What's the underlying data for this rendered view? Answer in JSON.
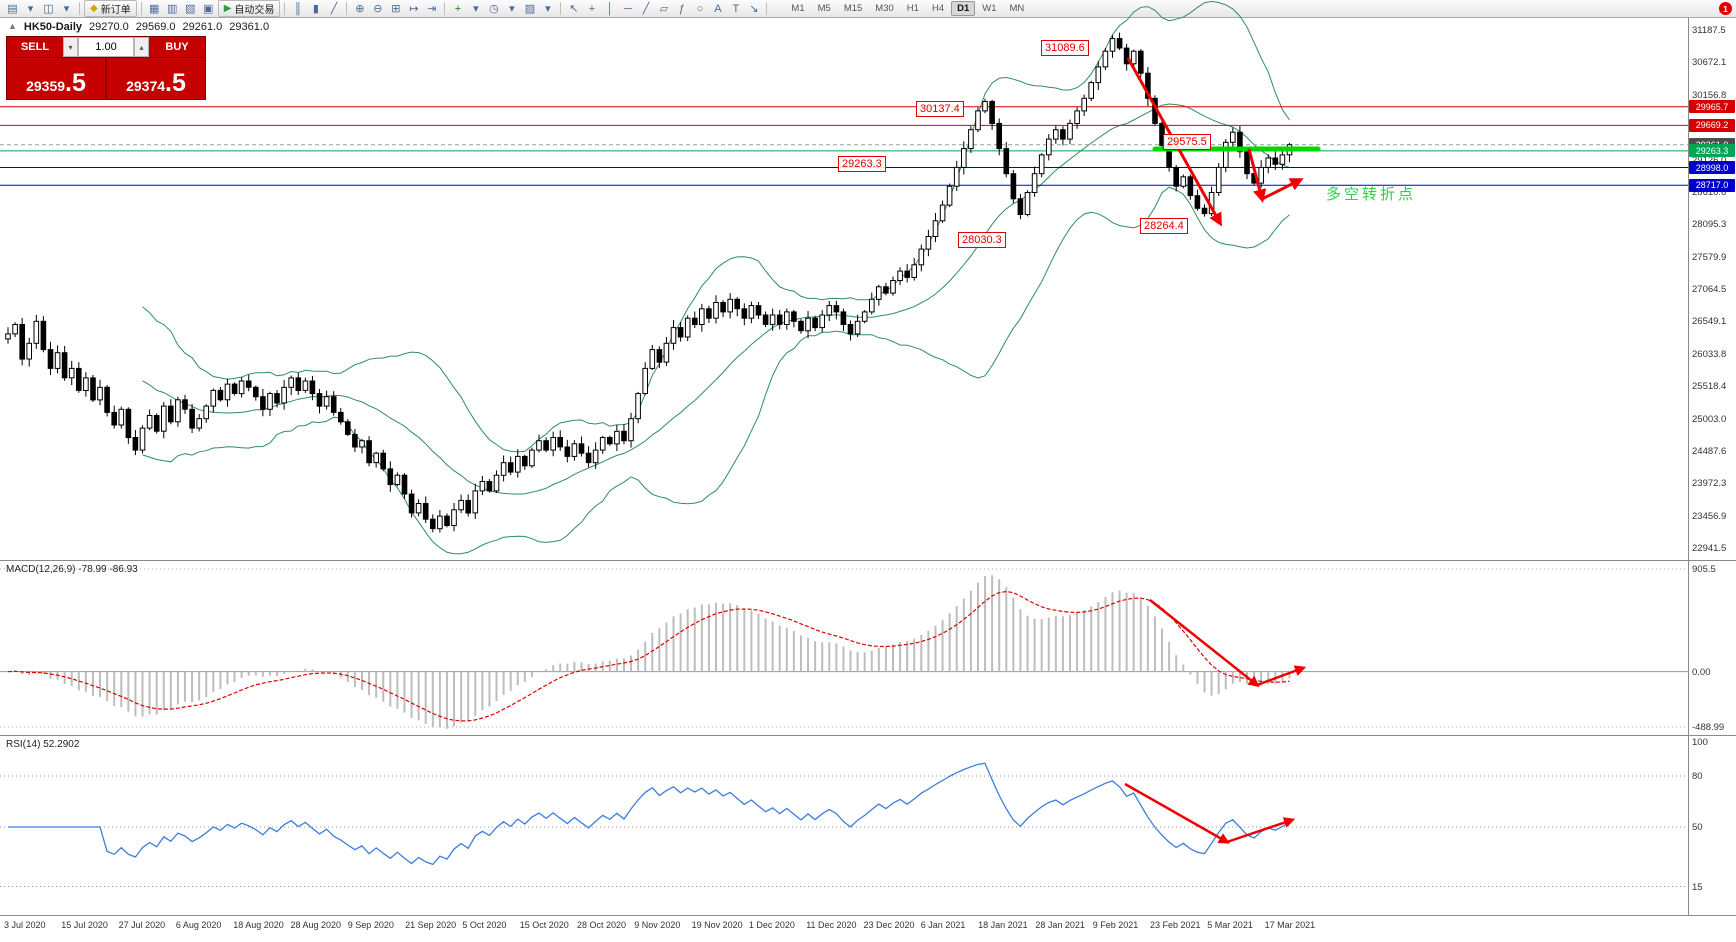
{
  "toolbar": {
    "items": [
      {
        "t": "icon",
        "n": "new-chart-icon",
        "g": "▤"
      },
      {
        "t": "icon",
        "n": "new-chart-dropdown-icon",
        "g": "▾"
      },
      {
        "t": "icon",
        "n": "profiles-icon",
        "g": "◫"
      },
      {
        "t": "icon",
        "n": "profiles-dropdown-icon",
        "g": "▾"
      },
      {
        "t": "sep"
      },
      {
        "t": "button",
        "n": "new-order-button",
        "g": "◆",
        "gc": "#d9a400",
        "label": "新订单"
      },
      {
        "t": "sep"
      },
      {
        "t": "icon",
        "n": "market-watch-icon",
        "g": "▦"
      },
      {
        "t": "icon",
        "n": "data-window-icon",
        "g": "▥"
      },
      {
        "t": "icon",
        "n": "navigator-icon",
        "g": "▧"
      },
      {
        "t": "icon",
        "n": "terminal-icon",
        "g": "▣"
      },
      {
        "t": "button",
        "n": "autotrading-button",
        "g": "▶",
        "gc": "#2e9e3f",
        "label": "自动交易"
      },
      {
        "t": "sep"
      },
      {
        "t": "icon",
        "n": "bar-chart-icon",
        "g": "║"
      },
      {
        "t": "icon",
        "n": "candlestick-chart-icon",
        "g": "▮"
      },
      {
        "t": "icon",
        "n": "line-chart-icon",
        "g": "╱"
      },
      {
        "t": "sep"
      },
      {
        "t": "icon",
        "n": "zoom-in-icon",
        "g": "⊕"
      },
      {
        "t": "icon",
        "n": "zoom-out-icon",
        "g": "⊖"
      },
      {
        "t": "icon",
        "n": "tile-windows-icon",
        "g": "⊞"
      },
      {
        "t": "icon",
        "n": "auto-scroll-icon",
        "g": "↦"
      },
      {
        "t": "icon",
        "n": "chart-shift-icon",
        "g": "⇥"
      },
      {
        "t": "sep"
      },
      {
        "t": "icon",
        "n": "indicators-icon",
        "g": "+",
        "gc": "#1a7f1a"
      },
      {
        "t": "icon",
        "n": "indicators-dropdown-icon",
        "g": "▾"
      },
      {
        "t": "icon",
        "n": "periods-icon",
        "g": "◷"
      },
      {
        "t": "icon",
        "n": "periods-dropdown-icon",
        "g": "▾"
      },
      {
        "t": "icon",
        "n": "templates-icon",
        "g": "▨"
      },
      {
        "t": "icon",
        "n": "templates-dropdown-icon",
        "g": "▾"
      },
      {
        "t": "sep"
      },
      {
        "t": "icon",
        "n": "cursor-icon",
        "g": "↖"
      },
      {
        "t": "icon",
        "n": "crosshair-icon",
        "g": "+"
      },
      {
        "t": "icon",
        "n": "vertical-line-icon",
        "g": "│"
      },
      {
        "t": "icon",
        "n": "horizontal-line-icon",
        "g": "─"
      },
      {
        "t": "icon",
        "n": "trendline-icon",
        "g": "╱"
      },
      {
        "t": "icon",
        "n": "channel-icon",
        "g": "▱"
      },
      {
        "t": "icon",
        "n": "fibonacci-icon",
        "g": "ƒ"
      },
      {
        "t": "icon",
        "n": "shapes-icon",
        "g": "○"
      },
      {
        "t": "icon",
        "n": "text-icon",
        "g": "A"
      },
      {
        "t": "icon",
        "n": "label-icon",
        "g": "T"
      },
      {
        "t": "icon",
        "n": "arrows-icon",
        "g": "↘"
      },
      {
        "t": "sep"
      }
    ],
    "timeframes": [
      "M1",
      "M5",
      "M15",
      "M30",
      "H1",
      "H4",
      "D1",
      "W1",
      "MN"
    ],
    "active_timeframe": "D1",
    "notification_count": "1"
  },
  "symbol_header": {
    "marker": "▲",
    "symbol": "HK50-Daily",
    "open": "29270.0",
    "high": "29569.0",
    "low": "29261.0",
    "close": "29361.0"
  },
  "trade_panel": {
    "sell_label": "SELL",
    "buy_label": "BUY",
    "volume": "1.00",
    "caret_down": "▾",
    "caret_up": "▴",
    "bid_int": "29359",
    "bid_frac": ".5",
    "ask_int": "29374",
    "ask_frac": ".5"
  },
  "chart_data": {
    "type": "candlestick",
    "symbol": "HK50",
    "period": "Daily",
    "last_price": 29361.0,
    "price_min": 22941.5,
    "price_max": 31187.5,
    "y_axis": [
      "31187.5",
      "30672.1",
      "30156.8",
      "29641.4",
      "29126.0",
      "28610.6",
      "28095.3",
      "27579.9",
      "27064.5",
      "26549.1",
      "26033.8",
      "25518.4",
      "25003.0",
      "24487.6",
      "23972.3",
      "23456.9",
      "22941.5"
    ],
    "x_axis_dates": [
      "3 Jul 2020",
      "15 Jul 2020",
      "27 Jul 2020",
      "6 Aug 2020",
      "18 Aug 2020",
      "28 Aug 2020",
      "9 Sep 2020",
      "21 Sep 2020",
      "5 Oct 2020",
      "15 Oct 2020",
      "28 Oct 2020",
      "9 Nov 2020",
      "19 Nov 2020",
      "1 Dec 2020",
      "11 Dec 2020",
      "23 Dec 2020",
      "6 Jan 2021",
      "18 Jan 2021",
      "28 Jan 2021",
      "9 Feb 2021",
      "23 Feb 2021",
      "5 Mar 2021",
      "17 Mar 2021"
    ],
    "closes": [
      26350,
      26500,
      25950,
      26200,
      26550,
      26100,
      25800,
      26050,
      25650,
      25800,
      25450,
      25650,
      25300,
      25500,
      25100,
      24900,
      25150,
      24700,
      24500,
      24850,
      25050,
      24800,
      25200,
      24950,
      25300,
      25150,
      24850,
      25000,
      25200,
      25450,
      25300,
      25550,
      25400,
      25600,
      25500,
      25350,
      25150,
      25400,
      25250,
      25500,
      25650,
      25450,
      25600,
      25400,
      25200,
      25350,
      25100,
      24950,
      24750,
      24550,
      24650,
      24300,
      24450,
      24200,
      23950,
      24100,
      23800,
      23500,
      23650,
      23400,
      23250,
      23450,
      23300,
      23550,
      23700,
      23500,
      23850,
      24000,
      23850,
      24100,
      24300,
      24150,
      24400,
      24250,
      24500,
      24650,
      24500,
      24700,
      24550,
      24400,
      24600,
      24450,
      24300,
      24500,
      24700,
      24600,
      24800,
      24650,
      25000,
      25400,
      25800,
      26100,
      25900,
      26200,
      26450,
      26300,
      26600,
      26500,
      26750,
      26600,
      26850,
      26700,
      26900,
      26750,
      26600,
      26800,
      26650,
      26500,
      26650,
      26500,
      26700,
      26550,
      26400,
      26600,
      26450,
      26650,
      26800,
      26700,
      26500,
      26350,
      26550,
      26700,
      26900,
      27100,
      27000,
      27200,
      27350,
      27250,
      27450,
      27700,
      27900,
      28150,
      28400,
      28700,
      29000,
      29300,
      29600,
      29900,
      30050,
      29700,
      29300,
      28900,
      28500,
      28250,
      28600,
      28900,
      29200,
      29450,
      29600,
      29450,
      29700,
      29900,
      30100,
      30350,
      30600,
      30850,
      31050,
      30900,
      30650,
      30850,
      30500,
      30100,
      29700,
      29350,
      29000,
      28700,
      28850,
      28550,
      28350,
      28264,
      28600,
      29000,
      29400,
      29560,
      29250,
      28900,
      28750,
      29000,
      29150,
      29050,
      29200,
      29361
    ],
    "bollinger": {
      "period": 20,
      "deviation": 2,
      "color": "#2f8f5b"
    },
    "hlines": [
      {
        "value": 29965.7,
        "color": "#dd0000"
      },
      {
        "value": 29669.2,
        "color": "#dd0000"
      },
      {
        "value": 29263.3,
        "color": "#00a651"
      },
      {
        "value": 28998.0,
        "color": "#0000dd"
      },
      {
        "value": 28717.0,
        "color": "#0000dd"
      }
    ],
    "badges": [
      {
        "text": "29965.7",
        "value": 29965.7,
        "color": "#d60000"
      },
      {
        "text": "29669.2",
        "value": 29669.2,
        "color": "#d60000"
      },
      {
        "text": "29361.0",
        "value": 29361.0,
        "color": "#4d4d4d"
      },
      {
        "text": "29263.3",
        "value": 29263.3,
        "color": "#00a651"
      },
      {
        "text": "28998.0",
        "value": 28998.0,
        "color": "#0000cc"
      },
      {
        "text": "28717.0",
        "value": 28717.0,
        "color": "#0000cc"
      }
    ],
    "callouts": [
      "31089.6",
      "30137.4",
      "29575.5",
      "29263.3",
      "28030.3",
      "28264.4"
    ],
    "annotation": "多空转折点",
    "macd": {
      "label": "MACD(12,26,9)",
      "values": "-78.99 -86.93",
      "axis": [
        "905.5",
        "0.00",
        "-488.99"
      ],
      "params": [
        12,
        26,
        9
      ]
    },
    "rsi": {
      "label": "RSI(14)",
      "value": "52.2902",
      "axis": [
        "100",
        "80",
        "50",
        "15"
      ],
      "levels": [
        80,
        50,
        15
      ],
      "period": 14
    }
  }
}
